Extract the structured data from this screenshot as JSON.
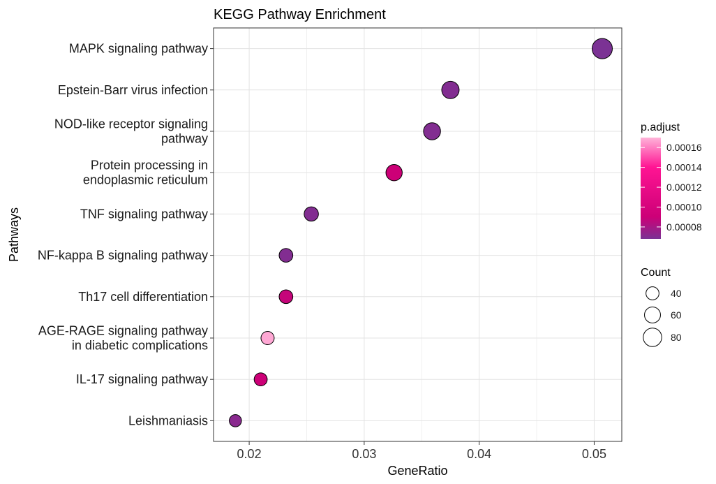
{
  "chart_data": {
    "type": "scatter",
    "title": "KEGG Pathway Enrichment",
    "xlabel": "GeneRatio",
    "ylabel": "Pathways",
    "xlim": [
      0.0169,
      0.0524
    ],
    "xticks": [
      0.02,
      0.03,
      0.04,
      0.05
    ],
    "xtick_labels": [
      "0.02",
      "0.03",
      "0.04",
      "0.05"
    ],
    "grid": true,
    "points": [
      {
        "label": "MAPK signaling pathway",
        "lines": [
          "MAPK signaling pathway"
        ],
        "x": 0.0507,
        "count": 96,
        "padj": 6.8e-05
      },
      {
        "label": "Epstein-Barr virus infection",
        "lines": [
          "Epstein-Barr virus infection"
        ],
        "x": 0.0375,
        "count": 71,
        "padj": 7e-05
      },
      {
        "label": "NOD-like receptor signaling pathway",
        "lines": [
          "NOD-like receptor signaling",
          "pathway"
        ],
        "x": 0.0359,
        "count": 68,
        "padj": 7e-05
      },
      {
        "label": "Protein processing in endoplasmic reticulum",
        "lines": [
          "Protein processing in",
          "endoplasmic reticulum"
        ],
        "x": 0.0326,
        "count": 62,
        "padj": 9e-05
      },
      {
        "label": "TNF signaling pathway",
        "lines": [
          "TNF signaling pathway"
        ],
        "x": 0.0254,
        "count": 48,
        "padj": 7e-05
      },
      {
        "label": "NF-kappa B signaling pathway",
        "lines": [
          "NF-kappa B signaling pathway"
        ],
        "x": 0.0232,
        "count": 44,
        "padj": 7e-05
      },
      {
        "label": "Th17 cell differentiation",
        "lines": [
          "Th17 cell differentiation"
        ],
        "x": 0.0232,
        "count": 44,
        "padj": 8.8e-05
      },
      {
        "label": "AGE-RAGE signaling pathway in diabetic complications",
        "lines": [
          "AGE-RAGE signaling pathway",
          "in diabetic complications"
        ],
        "x": 0.0216,
        "count": 41,
        "padj": 0.000168
      },
      {
        "label": "IL-17 signaling pathway",
        "lines": [
          "IL-17 signaling pathway"
        ],
        "x": 0.021,
        "count": 40,
        "padj": 9e-05
      },
      {
        "label": "Leishmaniasis",
        "lines": [
          "Leishmaniasis"
        ],
        "x": 0.0188,
        "count": 35,
        "padj": 7.2e-05
      }
    ],
    "color_legend": {
      "title": "p.adjust",
      "ticks": [
        0.00016,
        0.00014,
        0.00012,
        0.0001,
        8e-05
      ],
      "tick_labels": [
        "0.00016",
        "0.00014",
        "0.00012",
        "0.00010",
        "0.00008"
      ],
      "range": [
        6.8e-05,
        0.00017
      ],
      "colors": {
        "low": "#7b3294",
        "mid": "#cc0077",
        "high": "#ff1493",
        "top": "#ffb3d9"
      }
    },
    "size_legend": {
      "title": "Count",
      "values": [
        40,
        60,
        80
      ],
      "labels": [
        "40",
        "60",
        "80"
      ]
    },
    "legend_placement": "right"
  }
}
